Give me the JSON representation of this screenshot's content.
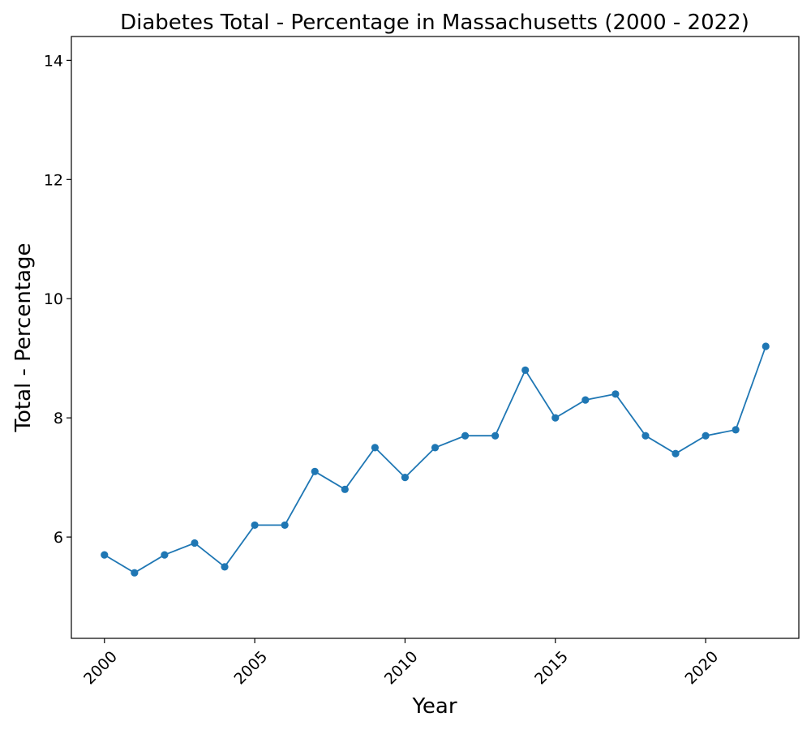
{
  "chart_data": {
    "type": "line",
    "title": "Diabetes Total - Percentage in Massachusetts (2000 - 2022)",
    "xlabel": "Year",
    "ylabel": "Total - Percentage",
    "x": [
      2000,
      2001,
      2002,
      2003,
      2004,
      2005,
      2006,
      2007,
      2008,
      2009,
      2010,
      2011,
      2012,
      2013,
      2014,
      2015,
      2016,
      2017,
      2018,
      2019,
      2020,
      2021,
      2022
    ],
    "series": [
      {
        "values": [
          5.7,
          5.4,
          5.7,
          5.9,
          5.5,
          6.2,
          6.2,
          7.1,
          6.8,
          7.5,
          7.0,
          7.5,
          7.7,
          7.7,
          8.8,
          8.0,
          8.3,
          8.4,
          7.7,
          7.4,
          7.7,
          7.8,
          9.2
        ],
        "color": "#1f77b4"
      }
    ],
    "xlim": [
      1998.9,
      2023.1
    ],
    "ylim": [
      4.3,
      14.4
    ],
    "xticks": [
      2000,
      2005,
      2010,
      2015,
      2020
    ],
    "yticks": [
      6,
      8,
      10,
      12,
      14
    ],
    "grid": false,
    "legend": "none"
  }
}
